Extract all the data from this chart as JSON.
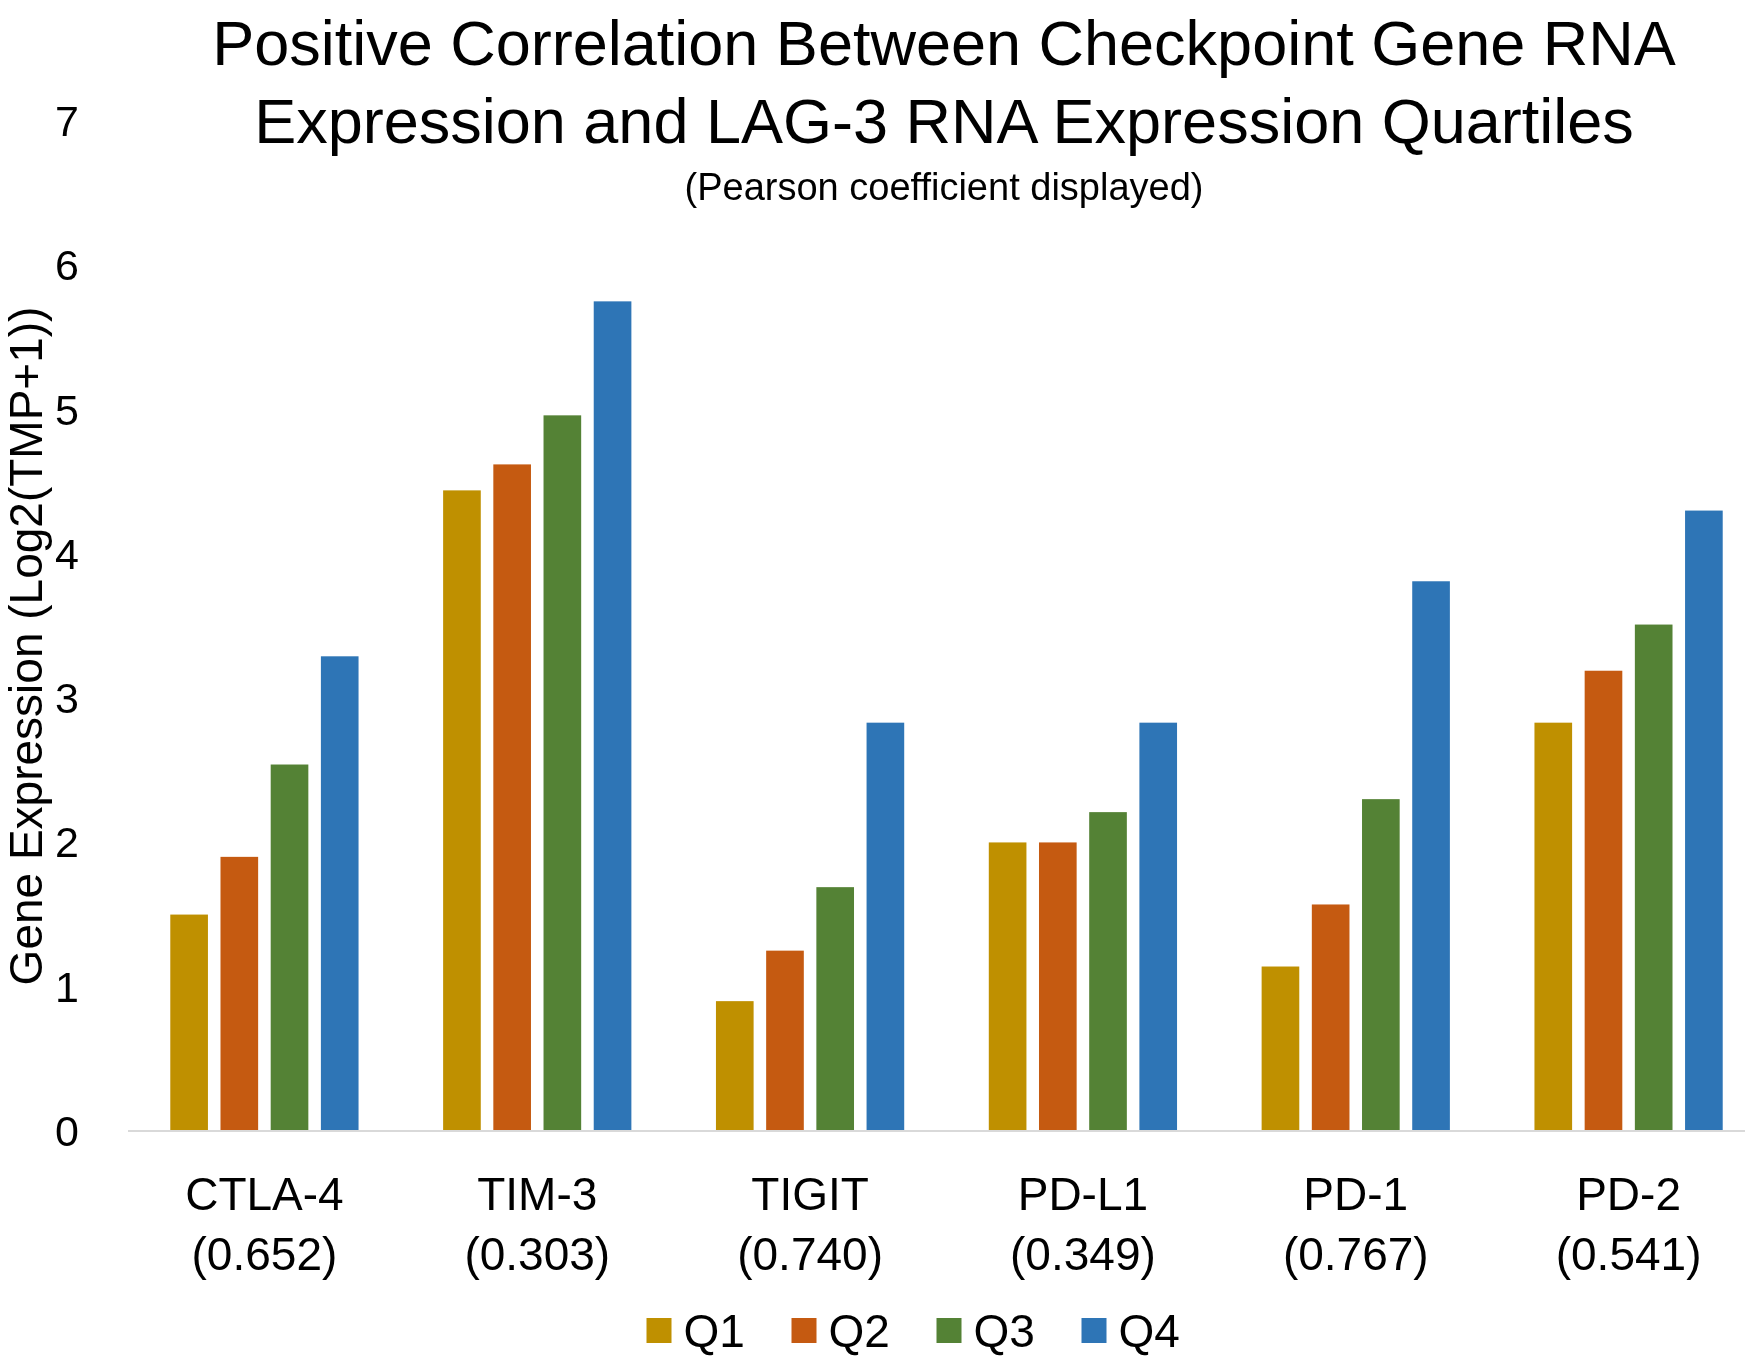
{
  "chart_data": {
    "type": "bar",
    "title": "Positive Correlation Between Checkpoint Gene RNA\nExpression and LAG-3 RNA Expression Quartiles",
    "subtitle": "(Pearson coefficient displayed)",
    "ylabel": "Gene Expression (Log2(TMP+1))",
    "categories": [
      "CTLA-4\n(0.652)",
      "TIM-3\n(0.303)",
      "TIGIT\n(0.740)",
      "PD-L1\n(0.349)",
      "PD-1\n(0.767)",
      "PD-2\n(0.541)"
    ],
    "series": [
      {
        "name": "Q1",
        "color": "#bf9000",
        "values": [
          1.5,
          4.44,
          0.9,
          2.0,
          1.14,
          2.83
        ]
      },
      {
        "name": "Q2",
        "color": "#c55a11",
        "values": [
          1.9,
          4.62,
          1.25,
          2.0,
          1.57,
          3.19
        ]
      },
      {
        "name": "Q3",
        "color": "#548235",
        "values": [
          2.54,
          4.96,
          1.69,
          2.21,
          2.3,
          3.51
        ]
      },
      {
        "name": "Q4",
        "color": "#2e75b6",
        "values": [
          3.29,
          5.75,
          2.83,
          2.83,
          3.81,
          4.3
        ]
      }
    ],
    "ylim": [
      0,
      7
    ],
    "yticks": [
      0,
      1,
      2,
      3,
      4,
      5,
      6,
      7
    ],
    "grid": false,
    "legend": "bottom"
  }
}
